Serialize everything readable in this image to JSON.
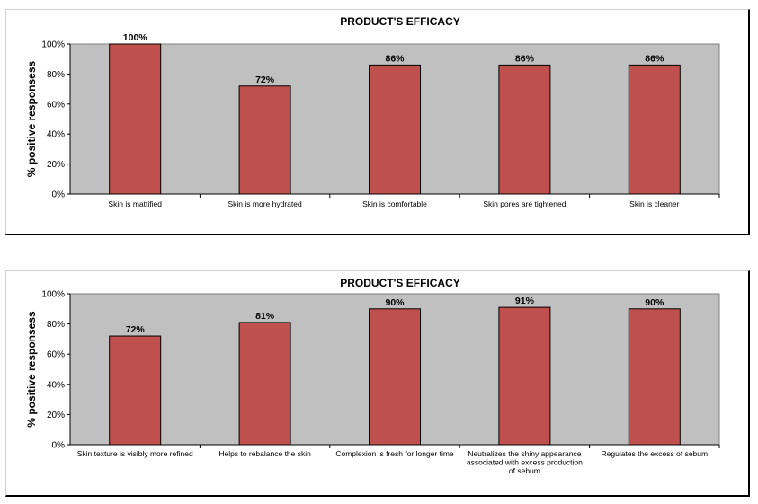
{
  "chart_data": [
    {
      "type": "bar",
      "title": "PRODUCT'S EFFICACY",
      "ylabel": "% positive responsess",
      "xlabel": "",
      "ylim": [
        0,
        100
      ],
      "yticks": [
        "0%",
        "20%",
        "40%",
        "60%",
        "80%",
        "100%"
      ],
      "grid": false,
      "legend": "none",
      "categories": [
        [
          "Skin is mattified"
        ],
        [
          "Skin is more hydrated"
        ],
        [
          "Skin is comfortable"
        ],
        [
          "Skin pores are tightened"
        ],
        [
          "Skin is cleaner"
        ]
      ],
      "values": [
        100,
        72,
        86,
        86,
        86
      ],
      "data_labels": [
        "100%",
        "72%",
        "86%",
        "86%",
        "86%"
      ],
      "colors": {
        "bar": "#c0504d",
        "plot_bg": "#c0c0c0"
      }
    },
    {
      "type": "bar",
      "title": "PRODUCT'S EFFICACY",
      "ylabel": "% positive responsess",
      "xlabel": "",
      "ylim": [
        0,
        100
      ],
      "yticks": [
        "0%",
        "20%",
        "40%",
        "60%",
        "80%",
        "100%"
      ],
      "grid": false,
      "legend": "none",
      "categories": [
        [
          "Skin texture is visibly more refined"
        ],
        [
          "Helps to rebalance the skin"
        ],
        [
          "Complexion is fresh for longer time"
        ],
        [
          "Neutralizes the shiny appearance",
          "associated with excess production",
          "of sebum"
        ],
        [
          "Regulates the excess of sebum"
        ]
      ],
      "values": [
        72,
        81,
        90,
        91,
        90
      ],
      "data_labels": [
        "72%",
        "81%",
        "90%",
        "91%",
        "90%"
      ],
      "colors": {
        "bar": "#c0504d",
        "plot_bg": "#c0c0c0"
      }
    }
  ]
}
